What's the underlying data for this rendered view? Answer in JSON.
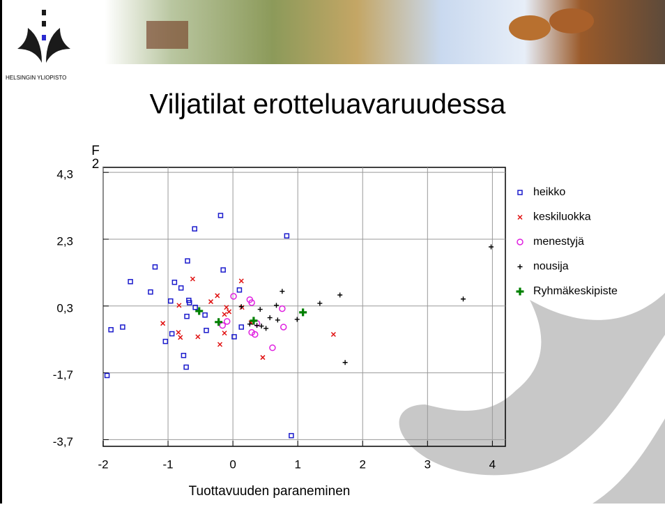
{
  "header": {
    "university": "HELSINGIN YLIOPISTO"
  },
  "chart_data": {
    "type": "scatter",
    "title": "Viljatilat erotteluavaruudessa",
    "xlabel": "Tuottavuuden paraneminen",
    "ylabel": [
      "F",
      "2"
    ],
    "xlim": [
      -2,
      4.2
    ],
    "ylim": [
      -3.9,
      4.45
    ],
    "xticks": [
      -2,
      -1,
      0,
      1,
      2,
      3,
      4
    ],
    "yticks": [
      {
        "value": 4.3,
        "label": "4,3"
      },
      {
        "value": 2.3,
        "label": "2,3"
      },
      {
        "value": 0.3,
        "label": "0,3"
      },
      {
        "value": -1.7,
        "label": "-1,7"
      },
      {
        "value": -3.7,
        "label": "-3,7"
      }
    ],
    "grid": true,
    "legend": "right",
    "series": [
      {
        "name": "heikko",
        "color": "#1a1acc",
        "marker": "square",
        "x": [
          -1.58,
          -1.88,
          -1.7,
          -1.2,
          -1.27,
          -0.7,
          -0.9,
          -0.8,
          -0.59,
          -0.19,
          -0.15,
          0.1,
          0.83,
          -0.96,
          -0.68,
          -0.67,
          -0.71,
          -0.43,
          -0.58,
          -0.94,
          -1.04,
          -0.76,
          -0.72,
          -1.94,
          -0.41,
          0.02,
          0.13,
          0.9
        ],
        "y": [
          1.03,
          -0.41,
          -0.33,
          1.47,
          0.72,
          1.65,
          1.01,
          0.84,
          2.61,
          3.01,
          1.38,
          0.78,
          2.4,
          0.45,
          0.47,
          0.4,
          -0.01,
          0.03,
          0.26,
          -0.53,
          -0.76,
          -1.18,
          -1.53,
          -1.78,
          -0.43,
          -0.62,
          -0.33,
          -3.58
        ]
      },
      {
        "name": "keskiluokka",
        "color": "#e01010",
        "marker": "x",
        "x": [
          -0.62,
          -0.83,
          -1.08,
          -0.84,
          -0.81,
          -0.54,
          -0.34,
          -0.24,
          -0.1,
          -0.06,
          -0.13,
          -0.13,
          -0.2,
          0.13,
          0.14,
          0.28,
          0.46,
          1.55
        ],
        "y": [
          1.11,
          0.32,
          -0.22,
          -0.49,
          -0.64,
          -0.62,
          0.43,
          0.61,
          0.26,
          0.13,
          0.05,
          -0.51,
          -0.85,
          1.05,
          0.26,
          -0.2,
          -1.24,
          -0.55
        ]
      },
      {
        "name": "menestyjä",
        "color": "#e020e0",
        "marker": "circle",
        "x": [
          0.01,
          0.26,
          0.29,
          -0.09,
          -0.16,
          0.29,
          0.34,
          0.76,
          0.78,
          0.61,
          0.37
        ],
        "y": [
          0.59,
          0.49,
          0.4,
          -0.16,
          -0.28,
          -0.49,
          -0.55,
          0.22,
          -0.33,
          -0.95,
          -0.22
        ]
      },
      {
        "name": "nousija",
        "color": "#000000",
        "marker": "plus",
        "x": [
          0.13,
          0.42,
          0.57,
          0.37,
          0.44,
          0.51,
          0.67,
          0.69,
          0.76,
          0.99,
          1.34,
          1.65,
          1.73,
          3.55,
          3.98,
          0.26
        ],
        "y": [
          0.28,
          0.2,
          -0.05,
          -0.28,
          -0.3,
          -0.37,
          0.32,
          -0.12,
          0.74,
          -0.1,
          0.38,
          0.63,
          -1.39,
          0.51,
          2.07,
          -0.24
        ]
      },
      {
        "name": "Ryhmäkeskipiste",
        "color": "#008000",
        "marker": "bigplus",
        "x": [
          -0.52,
          -0.22,
          0.32,
          1.08
        ],
        "y": [
          0.15,
          -0.18,
          -0.14,
          0.11
        ]
      }
    ]
  }
}
